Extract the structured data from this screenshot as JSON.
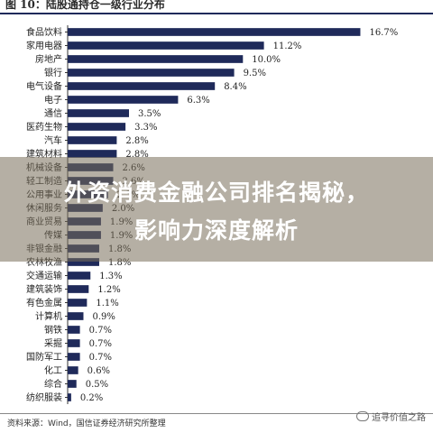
{
  "header": {
    "title": "图 10：陆股通持仓一级行业分布"
  },
  "chart_data": {
    "type": "bar",
    "orientation": "horizontal",
    "categories": [
      "食品饮料",
      "家用电器",
      "房地产",
      "银行",
      "电气设备",
      "电子",
      "通信",
      "医药生物",
      "汽车",
      "建筑材料",
      "机械设备",
      "轻工制造",
      "公用事业",
      "休闲服务",
      "商业贸易",
      "传媒",
      "非银金融",
      "农林牧渔",
      "交通运输",
      "建筑装饰",
      "有色金属",
      "计算机",
      "钢铁",
      "采掘",
      "国防军工",
      "化工",
      "综合",
      "纺织服装"
    ],
    "values": [
      16.7,
      11.2,
      10.0,
      9.5,
      8.4,
      6.3,
      3.5,
      3.3,
      2.8,
      2.8,
      2.6,
      2.6,
      2.3,
      2.0,
      1.9,
      1.9,
      1.8,
      1.8,
      1.3,
      1.2,
      1.1,
      0.9,
      0.7,
      0.7,
      0.7,
      0.6,
      0.5,
      0.2
    ],
    "value_labels": [
      "16.7%",
      "11.2%",
      "10.0%",
      "9.5%",
      "8.4%",
      "6.3%",
      "3.5%",
      "3.3%",
      "2.8%",
      "2.8%",
      "2.6%",
      "2.6%",
      "2.3%",
      "2.0%",
      "1.9%",
      "1.9%",
      "1.8%",
      "1.8%",
      "1.3%",
      "1.2%",
      "1.1%",
      "0.9%",
      "0.7%",
      "0.7%",
      "0.7%",
      "0.6%",
      "0.5%",
      "0.2%"
    ],
    "unit": "%",
    "xlim": [
      0,
      17.5
    ],
    "bar_color": "#1f2a5a",
    "grid": false,
    "legend": "none"
  },
  "overlay": {
    "line1": "外资消费金融公司排名揭秘，",
    "line2": "影响力深度解析"
  },
  "footer": {
    "source": "资料来源：Wind，国信证券经济研究所整理",
    "watermark": "追寻价值之路"
  }
}
